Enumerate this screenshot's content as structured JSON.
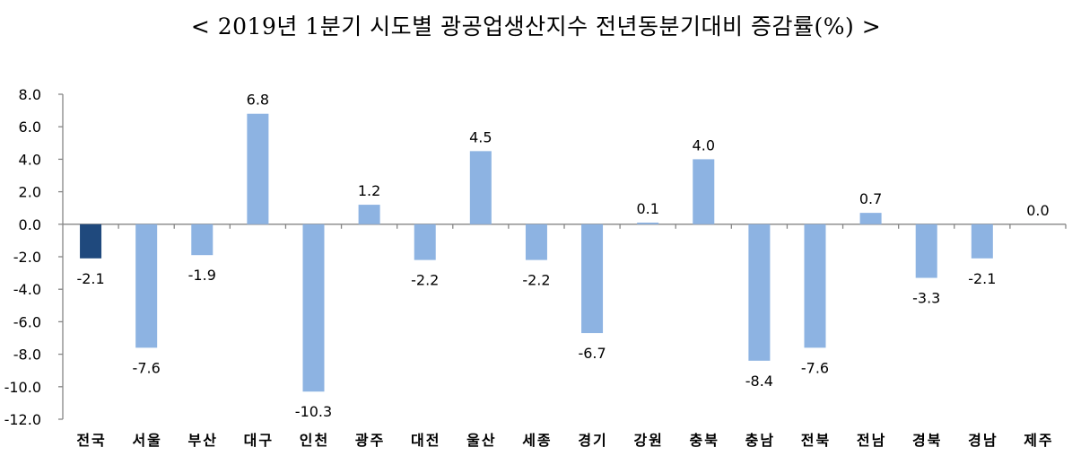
{
  "chart_data": {
    "type": "bar",
    "title": "< 2019년 1분기 시도별 광공업생산지수 전년동분기대비 증감률(%) >",
    "xlabel": "",
    "ylabel": "",
    "ylim": [
      -12,
      8
    ],
    "yticks": [
      "8.0",
      "6.0",
      "4.0",
      "2.0",
      "0.0",
      "-2.0",
      "-4.0",
      "-6.0",
      "-8.0",
      "-10.0",
      "-12.0"
    ],
    "ytick_values": [
      8,
      6,
      4,
      2,
      0,
      -2,
      -4,
      -6,
      -8,
      -10,
      -12
    ],
    "categories": [
      "전국",
      "서울",
      "부산",
      "대구",
      "인천",
      "광주",
      "대전",
      "울산",
      "세종",
      "경기",
      "강원",
      "충북",
      "충남",
      "전북",
      "전남",
      "경북",
      "경남",
      "제주"
    ],
    "values": [
      -2.1,
      -7.6,
      -1.9,
      6.8,
      -10.3,
      1.2,
      -2.2,
      4.5,
      -2.2,
      -6.7,
      0.1,
      4.0,
      -8.4,
      -7.6,
      0.7,
      -3.3,
      -2.1,
      0.0
    ],
    "labels": [
      "-2.1",
      "-7.6",
      "-1.9",
      "6.8",
      "-10.3",
      "1.2",
      "-2.2",
      "4.5",
      "-2.2",
      "-6.7",
      "0.1",
      "4.0",
      "-8.4",
      "-7.6",
      "0.7",
      "-3.3",
      "-2.1",
      "0.0"
    ],
    "grid": false,
    "legend": "none",
    "colors": {
      "highlight": "#1f497d",
      "bar": "#8db3e2",
      "axis": "#868686"
    }
  }
}
